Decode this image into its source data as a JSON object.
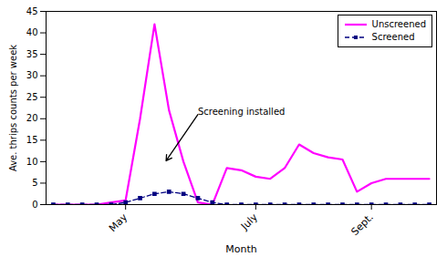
{
  "chart_data": {
    "type": "line",
    "xlabel": "Month",
    "ylabel": "Ave. thrips counts per week",
    "x": [
      0,
      1,
      2,
      3,
      4,
      5,
      6,
      7,
      8,
      9,
      10,
      11,
      12,
      13,
      14,
      15,
      16,
      17,
      18,
      19,
      20,
      21,
      22,
      23,
      24,
      25,
      26
    ],
    "series": [
      {
        "name": "Unscreened",
        "color": "#FF00FF",
        "line_style": "solid",
        "marker": "none",
        "values": [
          0,
          0,
          0,
          0,
          0.5,
          1.0,
          20,
          42,
          22,
          10,
          0.5,
          0,
          8.5,
          8.0,
          6.5,
          6.0,
          8.5,
          14,
          12,
          11,
          10.5,
          3.0,
          5.0,
          6.0,
          6.0,
          6.0,
          6.0
        ]
      },
      {
        "name": "Screened",
        "color": "#000080",
        "line_style": "dashed",
        "marker": "square",
        "values": [
          0,
          0,
          0,
          0,
          0,
          0.5,
          1.5,
          2.5,
          3.0,
          2.5,
          1.5,
          0.5,
          0,
          0,
          0,
          0,
          0,
          0,
          0,
          0,
          0,
          0,
          0,
          0,
          0,
          0,
          0
        ]
      }
    ],
    "xlim": [
      -0.5,
      26.5
    ],
    "xticks": [
      {
        "value": 5,
        "label": "May"
      },
      {
        "value": 14,
        "label": "July"
      },
      {
        "value": 22,
        "label": "Sept."
      }
    ],
    "ylim": [
      0,
      45
    ],
    "yticks": [
      0,
      5,
      10,
      15,
      20,
      25,
      30,
      35,
      40,
      45
    ],
    "legend": "upper right",
    "annotations": [
      {
        "text": "Screening installed",
        "x": 10.0,
        "y": 21.0,
        "arrow_x": 7.8,
        "arrow_y": 10.2
      }
    ]
  }
}
